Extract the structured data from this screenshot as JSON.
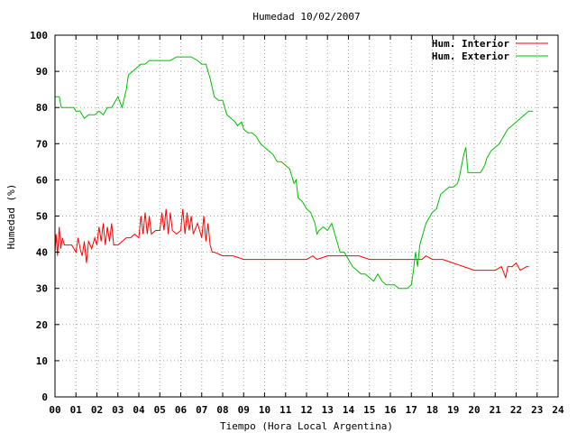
{
  "chart_data": {
    "type": "line",
    "title": "Humedad 10/02/2007",
    "xlabel": "Tiempo (Hora Local Argentina)",
    "ylabel": "Humedad (%)",
    "xlim": [
      0,
      24
    ],
    "ylim": [
      0,
      100
    ],
    "grid": true,
    "legend_position": "top-right",
    "x_ticks": [
      "00",
      "01",
      "02",
      "03",
      "04",
      "05",
      "06",
      "07",
      "08",
      "09",
      "10",
      "11",
      "12",
      "13",
      "14",
      "15",
      "16",
      "17",
      "18",
      "19",
      "20",
      "21",
      "22",
      "23",
      "24"
    ],
    "y_ticks": [
      "0",
      "10",
      "20",
      "30",
      "40",
      "50",
      "60",
      "70",
      "80",
      "90",
      "100"
    ],
    "series": [
      {
        "name": "Hum. Interior",
        "color": "#ff0000",
        "points": [
          [
            0.0,
            40
          ],
          [
            0.05,
            45
          ],
          [
            0.12,
            39
          ],
          [
            0.2,
            47
          ],
          [
            0.28,
            41
          ],
          [
            0.35,
            44
          ],
          [
            0.45,
            42
          ],
          [
            0.6,
            42
          ],
          [
            0.8,
            42
          ],
          [
            1.0,
            40
          ],
          [
            1.1,
            44
          ],
          [
            1.2,
            41
          ],
          [
            1.3,
            39
          ],
          [
            1.4,
            43
          ],
          [
            1.5,
            37
          ],
          [
            1.6,
            43
          ],
          [
            1.75,
            41
          ],
          [
            1.9,
            44
          ],
          [
            2.0,
            42
          ],
          [
            2.1,
            47
          ],
          [
            2.2,
            43
          ],
          [
            2.3,
            48
          ],
          [
            2.4,
            42
          ],
          [
            2.5,
            47
          ],
          [
            2.6,
            43
          ],
          [
            2.7,
            48
          ],
          [
            2.8,
            42
          ],
          [
            3.0,
            42
          ],
          [
            3.2,
            43
          ],
          [
            3.4,
            44
          ],
          [
            3.6,
            44
          ],
          [
            3.8,
            45
          ],
          [
            4.0,
            44
          ],
          [
            4.1,
            50
          ],
          [
            4.2,
            45
          ],
          [
            4.3,
            51
          ],
          [
            4.4,
            45
          ],
          [
            4.5,
            50
          ],
          [
            4.6,
            45
          ],
          [
            4.8,
            46
          ],
          [
            5.0,
            46
          ],
          [
            5.1,
            51
          ],
          [
            5.2,
            46
          ],
          [
            5.3,
            52
          ],
          [
            5.4,
            45
          ],
          [
            5.5,
            51
          ],
          [
            5.6,
            46
          ],
          [
            5.8,
            45
          ],
          [
            6.0,
            46
          ],
          [
            6.1,
            52
          ],
          [
            6.2,
            45
          ],
          [
            6.3,
            51
          ],
          [
            6.4,
            46
          ],
          [
            6.5,
            50
          ],
          [
            6.6,
            45
          ],
          [
            6.8,
            48
          ],
          [
            7.0,
            44
          ],
          [
            7.1,
            50
          ],
          [
            7.2,
            43
          ],
          [
            7.3,
            48
          ],
          [
            7.4,
            42
          ],
          [
            7.5,
            40
          ],
          [
            7.6,
            40
          ],
          [
            8.0,
            39
          ],
          [
            8.5,
            39
          ],
          [
            9.0,
            38
          ],
          [
            9.5,
            38
          ],
          [
            10.0,
            38
          ],
          [
            10.5,
            38
          ],
          [
            11.0,
            38
          ],
          [
            11.5,
            38
          ],
          [
            12.0,
            38
          ],
          [
            12.3,
            39
          ],
          [
            12.5,
            38
          ],
          [
            13.0,
            39
          ],
          [
            13.5,
            39
          ],
          [
            14.0,
            39
          ],
          [
            14.5,
            39
          ],
          [
            15.0,
            38
          ],
          [
            15.5,
            38
          ],
          [
            16.0,
            38
          ],
          [
            16.5,
            38
          ],
          [
            17.0,
            38
          ],
          [
            17.5,
            38
          ],
          [
            17.7,
            39
          ],
          [
            18.0,
            38
          ],
          [
            18.5,
            38
          ],
          [
            19.0,
            37
          ],
          [
            19.5,
            36
          ],
          [
            20.0,
            35
          ],
          [
            20.5,
            35
          ],
          [
            21.0,
            35
          ],
          [
            21.3,
            36
          ],
          [
            21.5,
            33
          ],
          [
            21.6,
            36
          ],
          [
            21.8,
            36
          ],
          [
            22.0,
            37
          ],
          [
            22.2,
            35
          ],
          [
            22.5,
            36
          ],
          [
            22.6,
            36
          ]
        ]
      },
      {
        "name": "Hum. Exterior",
        "color": "#00c000",
        "points": [
          [
            0.0,
            83
          ],
          [
            0.2,
            83
          ],
          [
            0.3,
            80
          ],
          [
            0.5,
            80
          ],
          [
            0.9,
            80
          ],
          [
            1.0,
            79
          ],
          [
            1.2,
            79
          ],
          [
            1.4,
            77
          ],
          [
            1.6,
            78
          ],
          [
            1.9,
            78
          ],
          [
            2.1,
            79
          ],
          [
            2.3,
            78
          ],
          [
            2.5,
            80
          ],
          [
            2.7,
            80
          ],
          [
            3.0,
            83
          ],
          [
            3.2,
            80
          ],
          [
            3.4,
            85
          ],
          [
            3.5,
            89
          ],
          [
            3.7,
            90
          ],
          [
            3.9,
            91
          ],
          [
            4.1,
            92
          ],
          [
            4.3,
            92
          ],
          [
            4.5,
            93
          ],
          [
            4.8,
            93
          ],
          [
            5.0,
            93
          ],
          [
            5.5,
            93
          ],
          [
            5.8,
            94
          ],
          [
            6.0,
            94
          ],
          [
            6.5,
            94
          ],
          [
            6.8,
            93
          ],
          [
            7.0,
            92
          ],
          [
            7.2,
            92
          ],
          [
            7.4,
            88
          ],
          [
            7.6,
            83
          ],
          [
            7.8,
            82
          ],
          [
            8.0,
            82
          ],
          [
            8.2,
            78
          ],
          [
            8.4,
            77
          ],
          [
            8.6,
            76
          ],
          [
            8.7,
            75
          ],
          [
            8.9,
            76
          ],
          [
            9.0,
            74
          ],
          [
            9.2,
            73
          ],
          [
            9.4,
            73
          ],
          [
            9.6,
            72
          ],
          [
            9.8,
            70
          ],
          [
            10.0,
            69
          ],
          [
            10.2,
            68
          ],
          [
            10.4,
            67
          ],
          [
            10.6,
            65
          ],
          [
            10.8,
            65
          ],
          [
            11.0,
            64
          ],
          [
            11.2,
            63
          ],
          [
            11.3,
            61
          ],
          [
            11.4,
            59
          ],
          [
            11.5,
            60
          ],
          [
            11.6,
            55
          ],
          [
            11.8,
            54
          ],
          [
            12.0,
            52
          ],
          [
            12.2,
            51
          ],
          [
            12.4,
            48
          ],
          [
            12.5,
            45
          ],
          [
            12.6,
            46
          ],
          [
            12.8,
            47
          ],
          [
            13.0,
            46
          ],
          [
            13.2,
            48
          ],
          [
            13.4,
            44
          ],
          [
            13.6,
            40
          ],
          [
            13.8,
            40
          ],
          [
            14.0,
            38
          ],
          [
            14.2,
            36
          ],
          [
            14.4,
            35
          ],
          [
            14.6,
            34
          ],
          [
            14.8,
            34
          ],
          [
            15.0,
            33
          ],
          [
            15.2,
            32
          ],
          [
            15.4,
            34
          ],
          [
            15.6,
            32
          ],
          [
            15.8,
            31
          ],
          [
            16.0,
            31
          ],
          [
            16.2,
            31
          ],
          [
            16.4,
            30
          ],
          [
            16.6,
            30
          ],
          [
            16.8,
            30
          ],
          [
            17.0,
            31
          ],
          [
            17.1,
            35
          ],
          [
            17.2,
            40
          ],
          [
            17.3,
            36
          ],
          [
            17.4,
            42
          ],
          [
            17.5,
            44
          ],
          [
            17.7,
            48
          ],
          [
            18.0,
            51
          ],
          [
            18.2,
            52
          ],
          [
            18.4,
            56
          ],
          [
            18.6,
            57
          ],
          [
            18.8,
            58
          ],
          [
            19.0,
            58
          ],
          [
            19.2,
            59
          ],
          [
            19.3,
            61
          ],
          [
            19.4,
            64
          ],
          [
            19.5,
            67
          ],
          [
            19.6,
            69
          ],
          [
            19.7,
            62
          ],
          [
            20.0,
            62
          ],
          [
            20.3,
            62
          ],
          [
            20.5,
            64
          ],
          [
            20.6,
            66
          ],
          [
            20.8,
            68
          ],
          [
            21.0,
            69
          ],
          [
            21.2,
            70
          ],
          [
            21.4,
            72
          ],
          [
            21.6,
            74
          ],
          [
            21.8,
            75
          ],
          [
            22.0,
            76
          ],
          [
            22.2,
            77
          ],
          [
            22.4,
            78
          ],
          [
            22.6,
            79
          ],
          [
            22.8,
            79
          ]
        ]
      }
    ]
  }
}
